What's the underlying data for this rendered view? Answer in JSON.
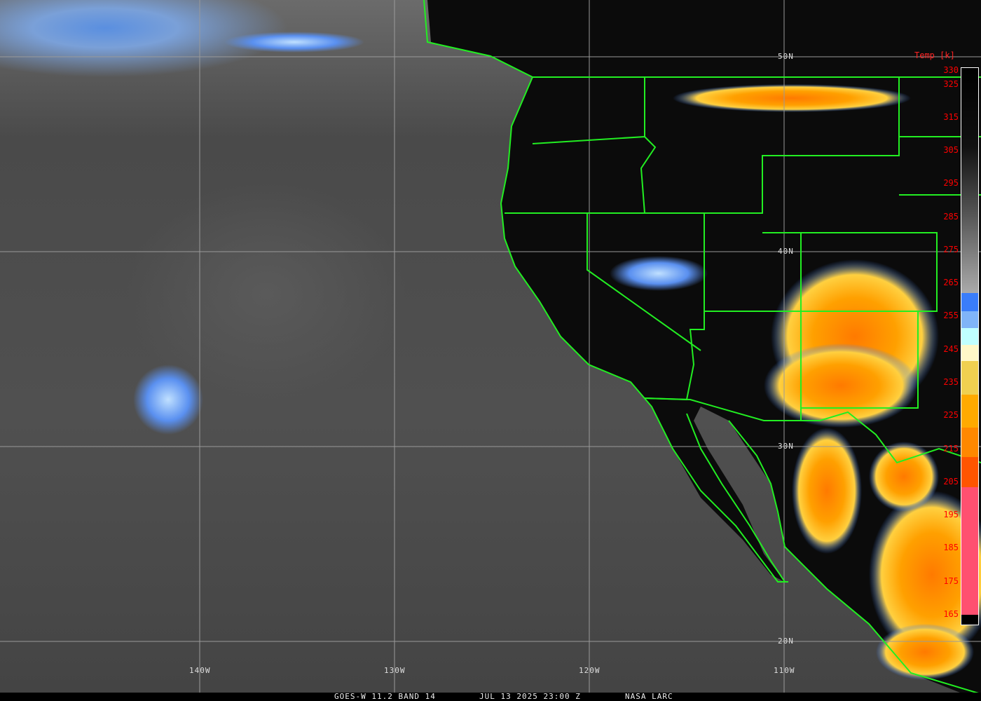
{
  "map": {
    "grid": {
      "latitudes": [
        {
          "label": "50N",
          "value": 50
        },
        {
          "label": "40N",
          "value": 40
        },
        {
          "label": "30N",
          "value": 30
        },
        {
          "label": "20N",
          "value": 20
        }
      ],
      "longitudes": [
        {
          "label": "140W",
          "value": -140
        },
        {
          "label": "130W",
          "value": -130
        },
        {
          "label": "120W",
          "value": -120
        },
        {
          "label": "110W",
          "value": -110
        }
      ]
    },
    "border_color": "#22ee22",
    "grid_color": "#9a9a9a"
  },
  "legend": {
    "title": "Temp [k]",
    "ticks": [
      "330",
      "325",
      "315",
      "305",
      "295",
      "285",
      "275",
      "265",
      "255",
      "245",
      "235",
      "225",
      "215",
      "205",
      "195",
      "185",
      "175",
      "165"
    ],
    "segments": [
      {
        "from": 330,
        "to": 262,
        "color": "gradient-black-to-gray"
      },
      {
        "from": 262,
        "to": 256.5,
        "color": "#3a7dfa"
      },
      {
        "from": 256.5,
        "to": 251.5,
        "color": "#80b4f8"
      },
      {
        "from": 251.5,
        "to": 246.5,
        "color": "#c0ffff"
      },
      {
        "from": 246.5,
        "to": 241.5,
        "color": "#fff8c8"
      },
      {
        "from": 241.5,
        "to": 231.5,
        "color": "#f0d050"
      },
      {
        "from": 231.5,
        "to": 221.5,
        "color": "#ffaa00"
      },
      {
        "from": 221.5,
        "to": 212.5,
        "color": "#ff8800"
      },
      {
        "from": 212.5,
        "to": 203.5,
        "color": "#ff5500"
      },
      {
        "from": 203.5,
        "to": 165,
        "color": "#ff5070"
      },
      {
        "from": 165,
        "to": 162,
        "color": "#000000"
      }
    ]
  },
  "footer": {
    "satellite": "GOES-W 11.2 BAND 14",
    "datetime": "JUL 13 2025 23:00 Z",
    "credit": "NASA LARC"
  }
}
